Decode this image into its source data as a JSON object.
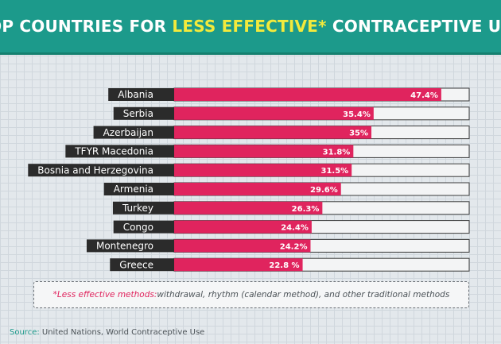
{
  "header": {
    "title_before": "TOP COUNTRIES FOR",
    "title_highlight": "LESS EFFECTIVE*",
    "title_after": "CONTRACEPTIVE USE"
  },
  "chart_data": {
    "type": "bar",
    "orientation": "horizontal",
    "title": "TOP COUNTRIES FOR LESS EFFECTIVE* CONTRACEPTIVE USE",
    "categories": [
      "Albania",
      "Serbia",
      "Azerbaijan",
      "TFYR Macedonia",
      "Bosnia and Herzegovina",
      "Armenia",
      "Turkey",
      "Congo",
      "Montenegro",
      "Greece"
    ],
    "values": [
      47.4,
      35.4,
      35,
      31.8,
      31.5,
      29.6,
      26.3,
      24.4,
      24.2,
      22.8
    ],
    "value_labels": [
      "47.4%",
      "35.4%",
      "35%",
      "31.8%",
      "31.5%",
      "29.6%",
      "26.3%",
      "24.4%",
      "24.2%",
      "22.8 %"
    ],
    "xlim": [
      0,
      50
    ],
    "grid": true,
    "colors": {
      "bar": "#e0245e",
      "track": "#f3f4f5",
      "label_bg": "#2b2b2b",
      "header": "#1c9a8b",
      "highlight": "#f3ea3c"
    }
  },
  "note": {
    "lead": "*Less effective methods:",
    "text": " withdrawal, rhythm (calendar method), and other traditional methods"
  },
  "source": {
    "label": "Source:",
    "text": " United Nations, World Contraceptive Use"
  }
}
